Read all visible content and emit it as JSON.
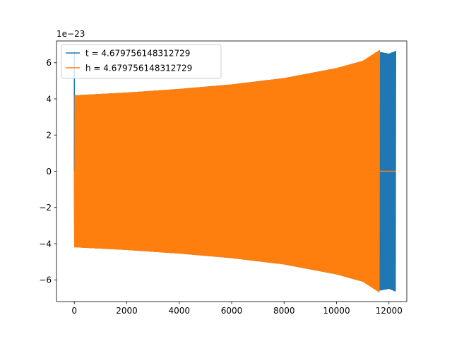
{
  "chart_data": {
    "type": "line",
    "title": "",
    "xlabel": "",
    "ylabel": "",
    "y_offset_label": "1e−23",
    "xlim": [
      -680,
      12680
    ],
    "ylim": [
      -7.2,
      7.2
    ],
    "x_ticks": [
      0,
      2000,
      4000,
      6000,
      8000,
      10000,
      12000
    ],
    "x_tick_labels": [
      "0",
      "2000",
      "4000",
      "6000",
      "8000",
      "10000",
      "12000"
    ],
    "y_ticks": [
      -6,
      -4,
      -2,
      0,
      2,
      4,
      6
    ],
    "y_tick_labels": [
      "−6",
      "−4",
      "−2",
      "0",
      "2",
      "4",
      "6"
    ],
    "grid": false,
    "legend_position": "upper-left",
    "series": [
      {
        "name": "t = 4.679756148312729",
        "color": "#1f77b4",
        "style": "oscillating-envelope",
        "x": [
          0,
          10,
          2000,
          4000,
          6000,
          8000,
          10000,
          11000,
          11640,
          12000,
          12260
        ],
        "upper": [
          6.6,
          4.2,
          4.35,
          4.55,
          4.8,
          5.15,
          5.7,
          6.1,
          6.6,
          6.5,
          6.65
        ],
        "lower": [
          -6.6,
          -4.2,
          -4.35,
          -4.55,
          -4.8,
          -5.15,
          -5.7,
          -6.1,
          -6.6,
          -6.5,
          -6.65
        ]
      },
      {
        "name": "h = 4.679756148312729",
        "color": "#ff7f0e",
        "style": "oscillating-envelope",
        "x": [
          0,
          10,
          2000,
          4000,
          6000,
          8000,
          10000,
          11000,
          11640
        ],
        "upper": [
          -0.7,
          4.2,
          4.35,
          4.55,
          4.8,
          5.15,
          5.7,
          6.1,
          6.7
        ],
        "lower": [
          -0.7,
          -4.2,
          -4.35,
          -4.55,
          -4.8,
          -5.15,
          -5.7,
          -6.1,
          -6.7
        ],
        "tail": {
          "x": [
            11640,
            12260
          ],
          "y": [
            0,
            0
          ]
        }
      }
    ]
  }
}
